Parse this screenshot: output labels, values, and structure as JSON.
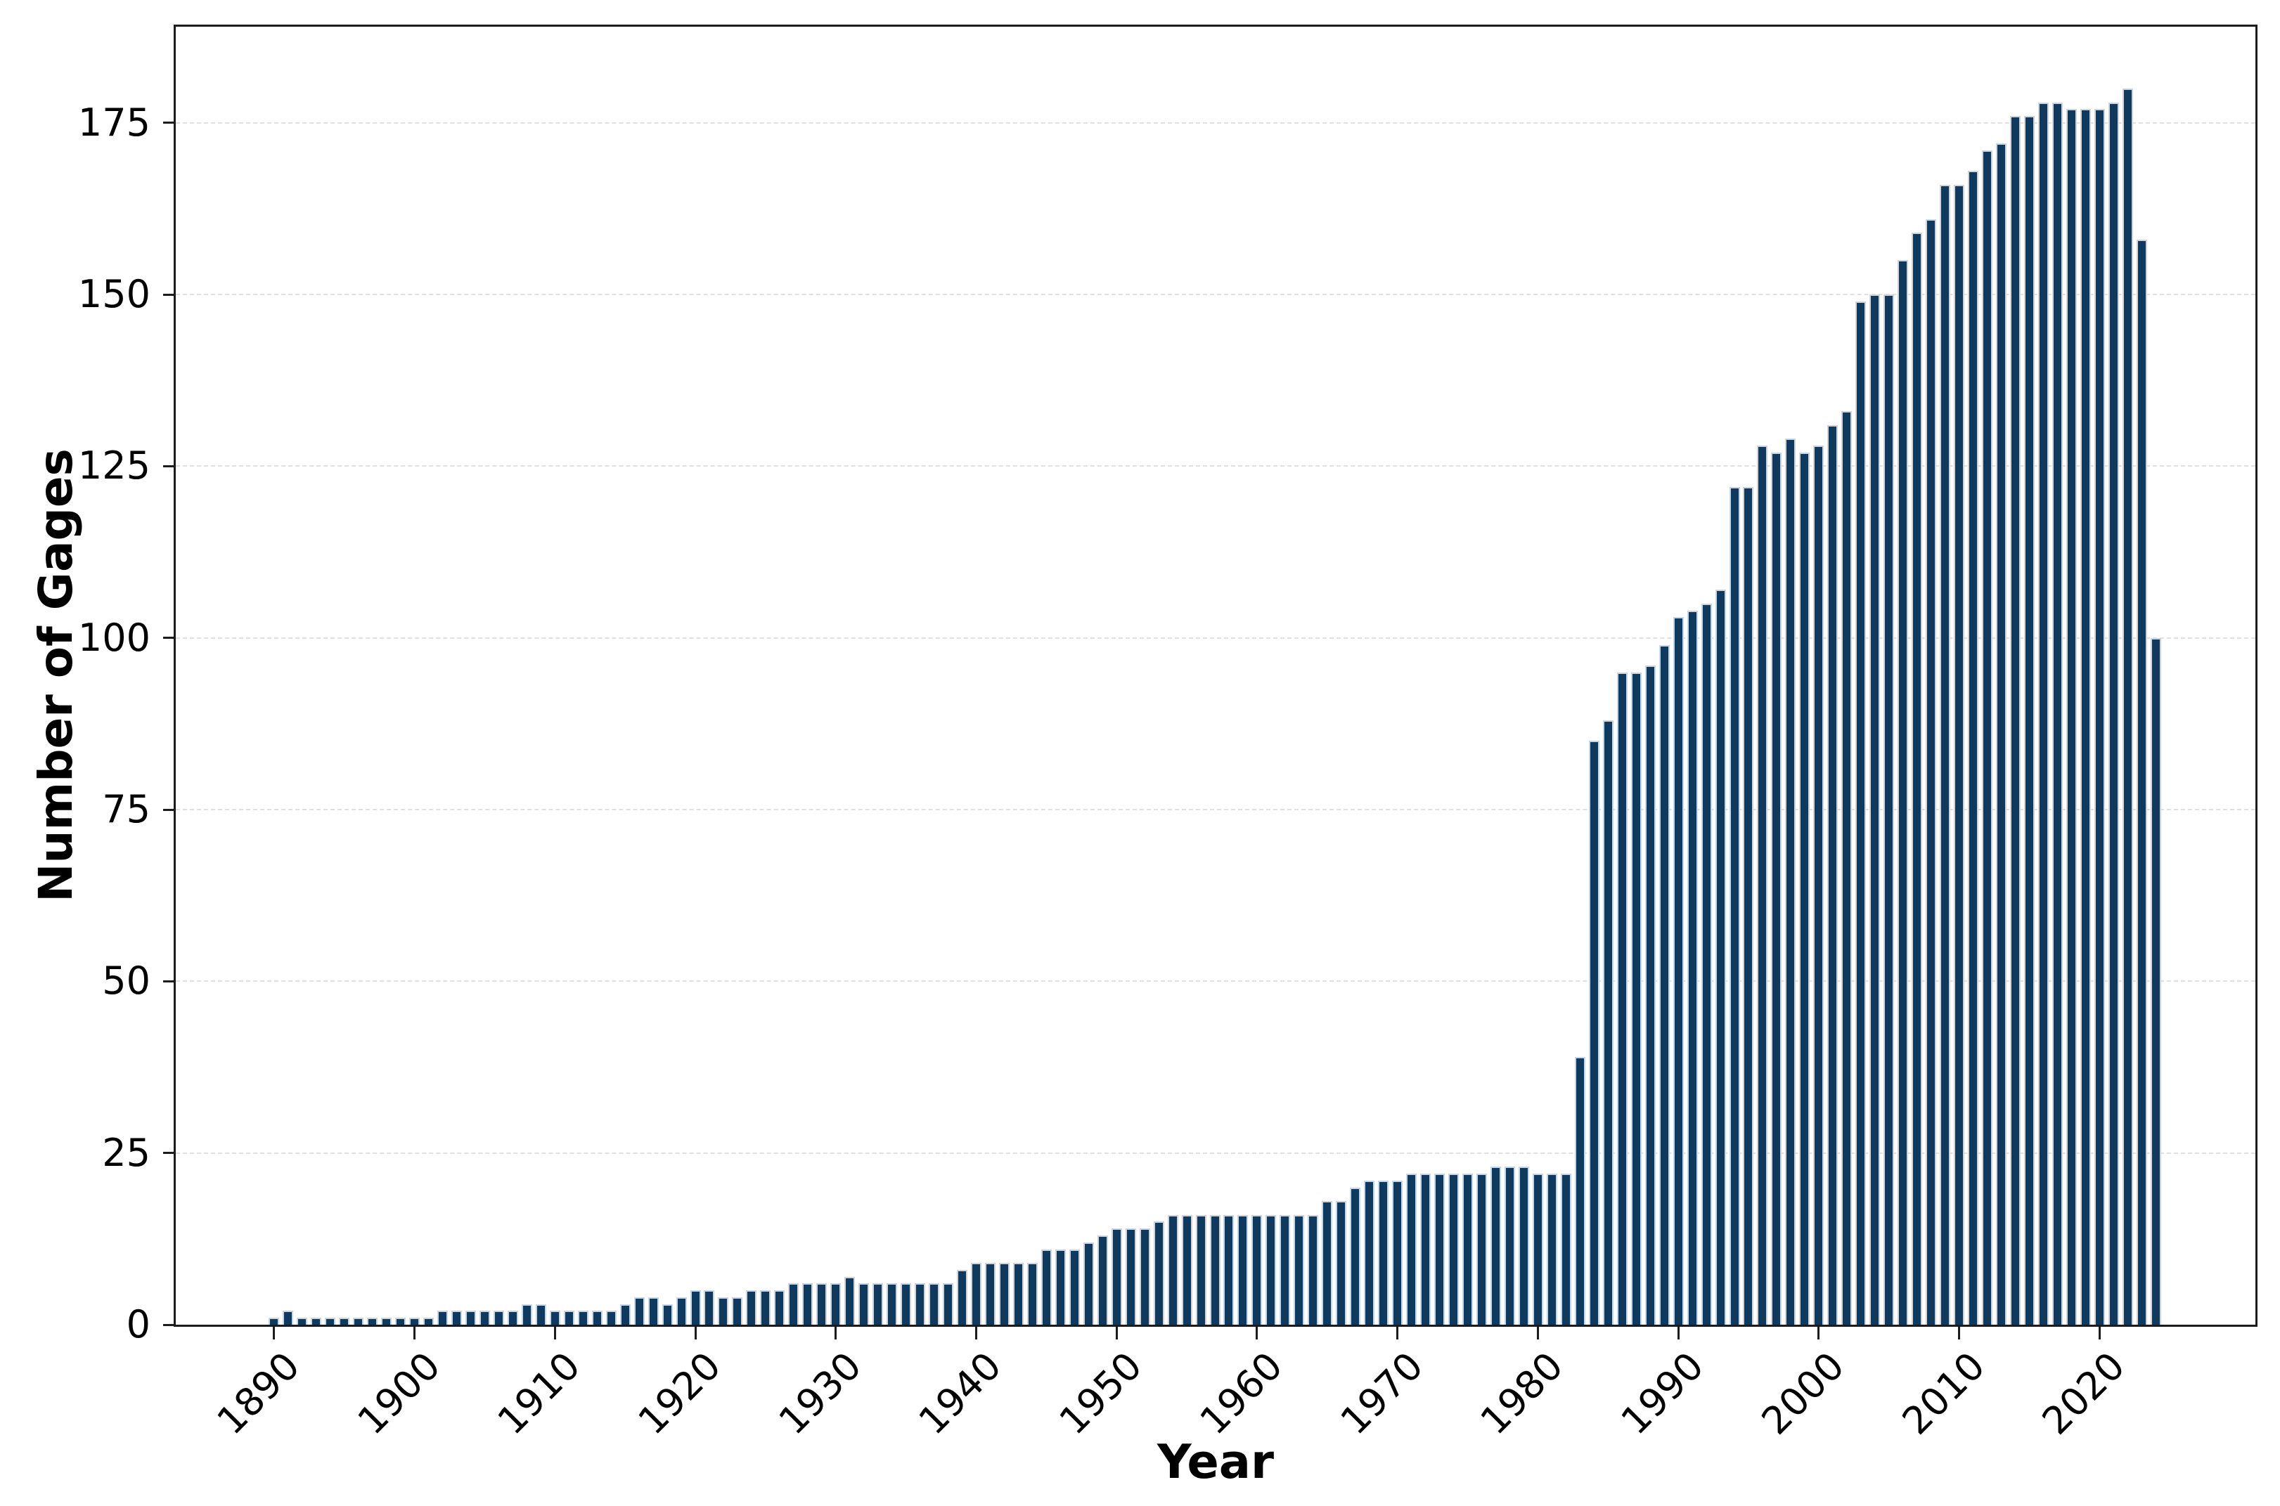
{
  "chart_data": {
    "type": "bar",
    "title": "",
    "xlabel": "Year",
    "ylabel": "Number of Gages",
    "x": [
      1890,
      1891,
      1892,
      1893,
      1894,
      1895,
      1896,
      1897,
      1898,
      1899,
      1900,
      1901,
      1902,
      1903,
      1904,
      1905,
      1906,
      1907,
      1908,
      1909,
      1910,
      1911,
      1912,
      1913,
      1914,
      1915,
      1916,
      1917,
      1918,
      1919,
      1920,
      1921,
      1922,
      1923,
      1924,
      1925,
      1926,
      1927,
      1928,
      1929,
      1930,
      1931,
      1932,
      1933,
      1934,
      1935,
      1936,
      1937,
      1938,
      1939,
      1940,
      1941,
      1942,
      1943,
      1944,
      1945,
      1946,
      1947,
      1948,
      1949,
      1950,
      1951,
      1952,
      1953,
      1954,
      1955,
      1956,
      1957,
      1958,
      1959,
      1960,
      1961,
      1962,
      1963,
      1964,
      1965,
      1966,
      1967,
      1968,
      1969,
      1970,
      1971,
      1972,
      1973,
      1974,
      1975,
      1976,
      1977,
      1978,
      1979,
      1980,
      1981,
      1982,
      1983,
      1984,
      1985,
      1986,
      1987,
      1988,
      1989,
      1990,
      1991,
      1992,
      1993,
      1994,
      1995,
      1996,
      1997,
      1998,
      1999,
      2000,
      2001,
      2002,
      2003,
      2004,
      2005,
      2006,
      2007,
      2008,
      2009,
      2010,
      2011,
      2012,
      2013,
      2014,
      2015,
      2016,
      2017,
      2018,
      2019,
      2020,
      2021,
      2022,
      2023,
      2024
    ],
    "values": [
      1,
      2,
      1,
      1,
      1,
      1,
      1,
      1,
      1,
      1,
      1,
      1,
      2,
      2,
      2,
      2,
      2,
      2,
      3,
      3,
      2,
      2,
      2,
      2,
      2,
      3,
      4,
      4,
      3,
      4,
      5,
      5,
      4,
      4,
      5,
      5,
      5,
      6,
      6,
      6,
      6,
      7,
      6,
      6,
      6,
      6,
      6,
      6,
      6,
      8,
      9,
      9,
      9,
      9,
      9,
      11,
      11,
      11,
      12,
      13,
      14,
      14,
      14,
      15,
      16,
      16,
      16,
      16,
      16,
      16,
      16,
      16,
      16,
      16,
      16,
      18,
      18,
      20,
      21,
      21,
      21,
      22,
      22,
      22,
      22,
      22,
      22,
      23,
      23,
      23,
      22,
      22,
      22,
      39,
      85,
      88,
      95,
      95,
      96,
      99,
      103,
      104,
      105,
      107,
      122,
      122,
      128,
      127,
      129,
      127,
      128,
      131,
      133,
      149,
      150,
      150,
      155,
      159,
      161,
      166,
      166,
      168,
      171,
      172,
      176,
      176,
      178,
      178,
      177,
      177,
      177,
      178,
      180,
      158,
      100
    ],
    "x_ticks": [
      1890,
      1900,
      1910,
      1920,
      1930,
      1940,
      1950,
      1960,
      1970,
      1980,
      1990,
      2000,
      2010,
      2020
    ],
    "y_ticks": [
      0,
      25,
      50,
      75,
      100,
      125,
      150,
      175
    ],
    "xlim": [
      1883.0,
      2031.1
    ],
    "ylim": [
      0,
      189
    ],
    "grid": "horizontal-dashed",
    "legend": "none",
    "colors": {
      "bar_fill": "#0d3a5e",
      "bar_edge": "#ccd5de",
      "gridline": "#e0e0e0",
      "spine": "#1c1c1c",
      "text": "#000000",
      "background": "#ffffff"
    }
  }
}
